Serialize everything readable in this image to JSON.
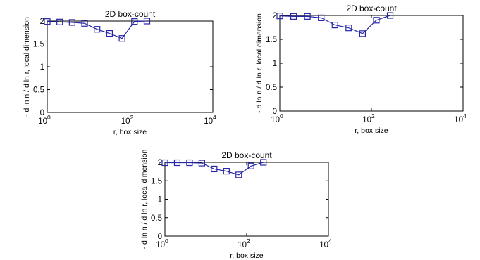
{
  "chart_data": [
    {
      "type": "line",
      "title": "2D box-count",
      "xlabel": "r, box size",
      "ylabel": "- d ln n / d ln r, local dimension",
      "xscale": "log",
      "xlim": [
        1,
        10000
      ],
      "ylim": [
        0,
        2
      ],
      "xticks": [
        {
          "base": "10",
          "exp": "0"
        },
        {
          "base": "10",
          "exp": "2"
        },
        {
          "base": "10",
          "exp": "4"
        }
      ],
      "yticks": [
        "0",
        "0.5",
        "1",
        "1.5",
        "2"
      ],
      "color": "#2626a6",
      "series": [
        {
          "x": [
            1,
            2,
            4,
            8,
            16,
            32,
            64,
            128,
            256
          ],
          "y": [
            1.99,
            1.98,
            1.97,
            1.95,
            1.82,
            1.73,
            1.62,
            1.99,
            2.0
          ]
        }
      ]
    },
    {
      "type": "line",
      "title": "2D box-count",
      "xlabel": "r, box size",
      "ylabel": "- d ln n / d ln r, local dimension",
      "xscale": "log",
      "xlim": [
        1,
        10000
      ],
      "ylim": [
        0,
        2
      ],
      "xticks": [
        {
          "base": "10",
          "exp": "0"
        },
        {
          "base": "10",
          "exp": "2"
        },
        {
          "base": "10",
          "exp": "4"
        }
      ],
      "yticks": [
        "0",
        "0.5",
        "1",
        "1.5",
        "2"
      ],
      "color": "#2626a6",
      "series": [
        {
          "x": [
            1,
            2,
            4,
            8,
            16,
            32,
            64,
            128,
            256
          ],
          "y": [
            1.99,
            1.98,
            1.98,
            1.95,
            1.8,
            1.74,
            1.62,
            1.9,
            2.0
          ]
        }
      ]
    },
    {
      "type": "line",
      "title": "2D box-count",
      "xlabel": "r, box size",
      "ylabel": "- d ln n / d ln r, local dimension",
      "xscale": "log",
      "xlim": [
        1,
        10000
      ],
      "ylim": [
        0,
        2
      ],
      "xticks": [
        {
          "base": "10",
          "exp": "0"
        },
        {
          "base": "10",
          "exp": "2"
        },
        {
          "base": "10",
          "exp": "4"
        }
      ],
      "yticks": [
        "0",
        "0.5",
        "1",
        "1.5",
        "2"
      ],
      "color": "#2626a6",
      "series": [
        {
          "x": [
            1,
            2,
            4,
            8,
            16,
            32,
            64,
            128,
            256
          ],
          "y": [
            1.99,
            1.99,
            1.99,
            1.98,
            1.82,
            1.76,
            1.66,
            1.9,
            2.0
          ]
        }
      ]
    }
  ]
}
